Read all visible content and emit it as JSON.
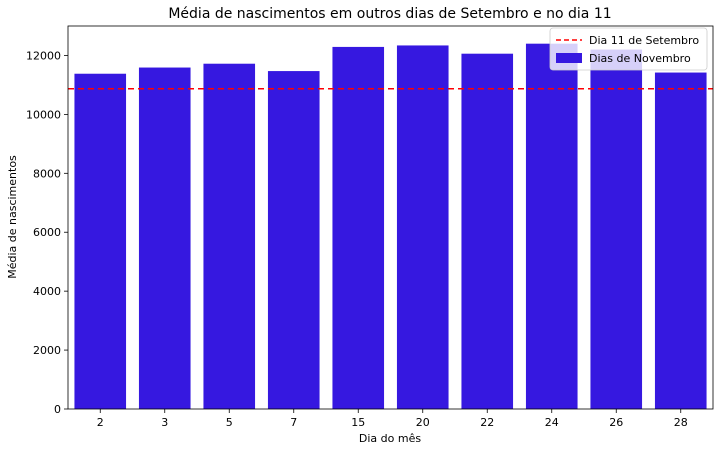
{
  "chart_data": {
    "type": "bar",
    "title": "Média de nascimentos em outros dias de Setembro e no dia 11",
    "xlabel": "Dia do mês",
    "ylabel": "Média de nascimentos",
    "categories": [
      "2",
      "3",
      "5",
      "7",
      "15",
      "20",
      "22",
      "24",
      "26",
      "28"
    ],
    "values": [
      11380,
      11590,
      11720,
      11470,
      12290,
      12340,
      12060,
      12400,
      12200,
      11420
    ],
    "ylim": [
      0,
      13000
    ],
    "yticks": [
      0,
      2000,
      4000,
      6000,
      8000,
      10000,
      12000
    ],
    "reference_line": {
      "value": 10870,
      "label": "Dia 11 de Setembro",
      "color": "#ff0000",
      "style": "dashed"
    },
    "bar_color": "#3618e0",
    "bar_label": "Dias de Novembro",
    "legend_position": "top-right",
    "grid": false
  }
}
